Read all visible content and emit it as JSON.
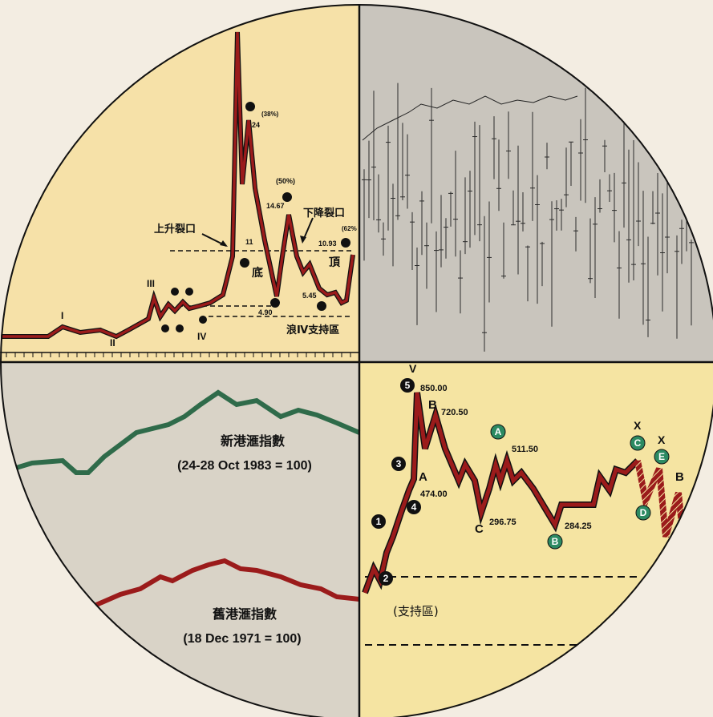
{
  "colors": {
    "line_red": "#9b1b1b",
    "line_green": "#2f6b4a",
    "quad_tl": "#f6e1a8",
    "quad_tr": "#c9c5bd",
    "quad_bl": "#d9d3c7",
    "quad_br": "#f5e4a2",
    "circle_badge_green": "#2c8a62"
  },
  "chart_data": [
    {
      "type": "line",
      "quadrant": "top-left",
      "series": [
        {
          "values": [
            2,
            2,
            2.5,
            2.2,
            2.3,
            1.8,
            2.4,
            3.5,
            4.5,
            4,
            4.5,
            4.9,
            5.2,
            6.5,
            25,
            11,
            24,
            13,
            10,
            4.9,
            14.67,
            9,
            10,
            6,
            5.45,
            5.7,
            6,
            10.93
          ]
        }
      ],
      "wave_labels": [
        "I",
        "II",
        "III",
        "IV"
      ],
      "annotations": {
        "pct_38": "(38%)",
        "val_24": "24",
        "pct_50": "(50%)",
        "val_1467": "14.67",
        "pct_62": "(62%",
        "val_1093": "10.93",
        "val_11": "11",
        "val_490": "4.90",
        "val_545": "5.45",
        "up_gap": "上升裂口",
        "down_gap": "下降裂口",
        "bottom": "底",
        "top": "頂",
        "support": "浪Ⅳ支持區"
      }
    },
    {
      "type": "line",
      "quadrant": "bottom-left",
      "series": [
        {
          "name": "新港滙指數",
          "caption": "(24-28 Oct 1983 = 100)"
        },
        {
          "name": "舊港滙指數",
          "caption": "(18 Dec 1971 = 100)"
        }
      ]
    },
    {
      "type": "line",
      "quadrant": "bottom-right",
      "series": [
        {
          "values": [
            100,
            400,
            474,
            850,
            720.5,
            296.75,
            511.5,
            284.25,
            350,
            420
          ]
        }
      ],
      "points": [
        {
          "label": "850.00",
          "value": 850.0
        },
        {
          "label": "720.50",
          "value": 720.5
        },
        {
          "label": "474.00",
          "value": 474.0
        },
        {
          "label": "511.50",
          "value": 511.5
        },
        {
          "label": "296.75",
          "value": 296.75
        },
        {
          "label": "284.25",
          "value": 284.25
        }
      ],
      "wave_numbers": [
        "1",
        "2",
        "3",
        "4",
        "5"
      ],
      "letters": {
        "v": "V",
        "a": "A",
        "b": "B",
        "b2": "B",
        "c": "C",
        "x1": "X",
        "x2": "X",
        "a_circ": "A",
        "b_circ": "B",
        "c_circ": "C",
        "d_circ": "D",
        "e_circ": "E"
      },
      "support_text": "(支持區)"
    },
    {
      "type": "line",
      "quadrant": "top-right"
    }
  ]
}
